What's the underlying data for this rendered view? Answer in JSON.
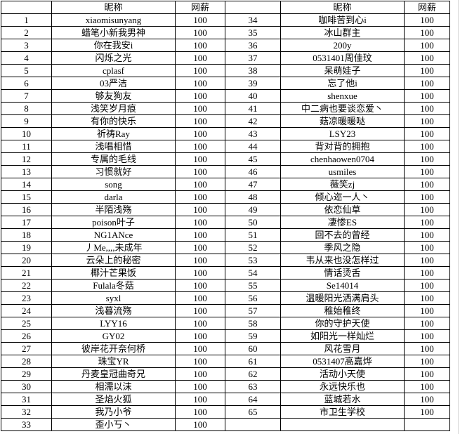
{
  "colors": {
    "background": "#ffffff",
    "border": "#000000",
    "text": "#000000",
    "faint_gridline": "#d8d8d8"
  },
  "table": {
    "header": {
      "num": "",
      "nickname": "昵称",
      "salary": "网薪"
    },
    "left_rows": [
      {
        "num": "1",
        "nickname": "xiaomisunyang",
        "salary": "100"
      },
      {
        "num": "2",
        "nickname": "蜡笔小新我男神",
        "salary": "100"
      },
      {
        "num": "3",
        "nickname": "你在我安i",
        "salary": "100"
      },
      {
        "num": "4",
        "nickname": "闪烁之光",
        "salary": "100"
      },
      {
        "num": "5",
        "nickname": "cplasf",
        "salary": "100"
      },
      {
        "num": "6",
        "nickname": "03严洁",
        "salary": "100"
      },
      {
        "num": "7",
        "nickname": "够友狗友",
        "salary": "100"
      },
      {
        "num": "8",
        "nickname": "浅笑岁月痕",
        "salary": "100"
      },
      {
        "num": "9",
        "nickname": "有你的快乐",
        "salary": "100"
      },
      {
        "num": "10",
        "nickname": "祈祷Ray",
        "salary": "100"
      },
      {
        "num": "11",
        "nickname": "浅唱相惜",
        "salary": "100"
      },
      {
        "num": "12",
        "nickname": "专属的毛线",
        "salary": "100"
      },
      {
        "num": "13",
        "nickname": "习惯就好",
        "salary": "100"
      },
      {
        "num": "14",
        "nickname": "song",
        "salary": "100"
      },
      {
        "num": "15",
        "nickname": "darla",
        "salary": "100"
      },
      {
        "num": "16",
        "nickname": "半陌浅殇",
        "salary": "100"
      },
      {
        "num": "17",
        "nickname": "poison叶子",
        "salary": "100"
      },
      {
        "num": "18",
        "nickname": "NG1ANce",
        "salary": "100"
      },
      {
        "num": "19",
        "nickname": "丿Me,,,,未成年",
        "salary": "100"
      },
      {
        "num": "20",
        "nickname": "云朵上的秘密",
        "salary": "100"
      },
      {
        "num": "21",
        "nickname": "椰汁芒果饭",
        "salary": "100"
      },
      {
        "num": "22",
        "nickname": "Fulala冬菇",
        "salary": "100"
      },
      {
        "num": "23",
        "nickname": "syxl",
        "salary": "100"
      },
      {
        "num": "24",
        "nickname": "浅暮流殇",
        "salary": "100"
      },
      {
        "num": "25",
        "nickname": "LYY16",
        "salary": "100"
      },
      {
        "num": "26",
        "nickname": "GY02",
        "salary": "100"
      },
      {
        "num": "27",
        "nickname": "彼岸花开奈何桥",
        "salary": "100"
      },
      {
        "num": "28",
        "nickname": "珠宝YR",
        "salary": "100"
      },
      {
        "num": "29",
        "nickname": "丹麦皇冠曲奇兄",
        "salary": "100"
      },
      {
        "num": "30",
        "nickname": "相濡以沫",
        "salary": "100"
      },
      {
        "num": "31",
        "nickname": "圣焰火狐",
        "salary": "100"
      },
      {
        "num": "32",
        "nickname": "我乃小爷",
        "salary": "100"
      },
      {
        "num": "33",
        "nickname": "歪小丂丶",
        "salary": "100"
      }
    ],
    "right_rows": [
      {
        "num": "34",
        "nickname": "咖啡苦到心i",
        "salary": "100"
      },
      {
        "num": "35",
        "nickname": "冰山群主",
        "salary": "100"
      },
      {
        "num": "36",
        "nickname": "200y",
        "salary": "100"
      },
      {
        "num": "37",
        "nickname": "0531401周佳玟",
        "salary": "100"
      },
      {
        "num": "38",
        "nickname": "呆萌娃子",
        "salary": "100"
      },
      {
        "num": "39",
        "nickname": "忘了他i",
        "salary": "100"
      },
      {
        "num": "40",
        "nickname": "shenxue",
        "salary": "100"
      },
      {
        "num": "41",
        "nickname": "中二病也要谈恋爱丶",
        "salary": "100"
      },
      {
        "num": "42",
        "nickname": "菇凉暖暖哒",
        "salary": "100"
      },
      {
        "num": "43",
        "nickname": "LSY23",
        "salary": "100"
      },
      {
        "num": "44",
        "nickname": "背对背的拥抱",
        "salary": "100"
      },
      {
        "num": "45",
        "nickname": "chenhaowen0704",
        "salary": "100"
      },
      {
        "num": "46",
        "nickname": "usmiles",
        "salary": "100"
      },
      {
        "num": "47",
        "nickname": "薇笑zj",
        "salary": "100"
      },
      {
        "num": "48",
        "nickname": "倾心迩一人丶",
        "salary": "100"
      },
      {
        "num": "49",
        "nickname": "依恋仙草",
        "salary": "100"
      },
      {
        "num": "50",
        "nickname": "凄惨ES",
        "salary": "100"
      },
      {
        "num": "51",
        "nickname": "回不去的曾经",
        "salary": "100"
      },
      {
        "num": "52",
        "nickname": "季风之隐",
        "salary": "100"
      },
      {
        "num": "53",
        "nickname": "韦从来也没怎样过",
        "salary": "100"
      },
      {
        "num": "54",
        "nickname": "情话烫舌",
        "salary": "100"
      },
      {
        "num": "55",
        "nickname": "Se14014",
        "salary": "100"
      },
      {
        "num": "56",
        "nickname": "温暖阳光洒满肩头",
        "salary": "100"
      },
      {
        "num": "57",
        "nickname": "稚始稚终",
        "salary": "100"
      },
      {
        "num": "58",
        "nickname": "你的守护天使",
        "salary": "100"
      },
      {
        "num": "59",
        "nickname": "如阳光一样灿烂",
        "salary": "100"
      },
      {
        "num": "60",
        "nickname": "风花雪月",
        "salary": "100"
      },
      {
        "num": "61",
        "nickname": "0531407高嘉烨",
        "salary": "100"
      },
      {
        "num": "62",
        "nickname": "活动小天使",
        "salary": "100"
      },
      {
        "num": "63",
        "nickname": "永远快乐也",
        "salary": "100"
      },
      {
        "num": "64",
        "nickname": "蓝城若水",
        "salary": "100"
      },
      {
        "num": "65",
        "nickname": "市卫生学校",
        "salary": "100"
      },
      {
        "num": "",
        "nickname": "",
        "salary": ""
      }
    ]
  }
}
